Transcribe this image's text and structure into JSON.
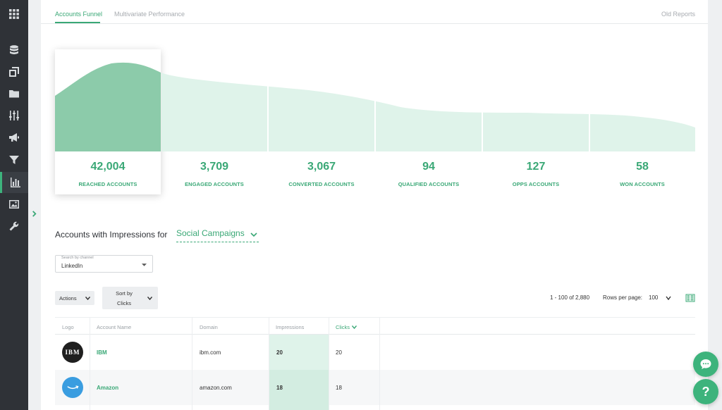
{
  "tabs": [
    {
      "label": "Accounts Funnel",
      "active": true
    },
    {
      "label": "Multivariate Performance",
      "active": false
    }
  ],
  "old_reports": "Old Reports",
  "funnel": {
    "stages": [
      {
        "value": "42,004",
        "label": "REACHED ACCOUNTS",
        "selected": true
      },
      {
        "value": "3,709",
        "label": "ENGAGED ACCOUNTS"
      },
      {
        "value": "3,067",
        "label": "CONVERTED ACCOUNTS"
      },
      {
        "value": "94",
        "label": "QUALIFIED ACCOUNTS"
      },
      {
        "value": "127",
        "label": "OPPS ACCOUNTS"
      },
      {
        "value": "58",
        "label": "WON ACCOUNTS"
      }
    ],
    "colors": {
      "selected": "#8ccbaa",
      "unselected": "#dff3ea"
    }
  },
  "section": {
    "title": "Accounts with Impressions for",
    "campaign": "Social Campaigns"
  },
  "channel": {
    "caption": "Search by channel",
    "value": "LinkedIn"
  },
  "toolbar": {
    "actions": "Actions",
    "sort_line1": "Sort by",
    "sort_line2": "Clicks",
    "range": "1 - 100 of 2,880",
    "rows_per_page_label": "Rows per page:",
    "rows_per_page": "100"
  },
  "table": {
    "columns": [
      "Logo",
      "Account Name",
      "Domain",
      "Impressions",
      "Clicks"
    ],
    "sorted_column": "Clicks",
    "rows": [
      {
        "logo": "IBM",
        "name": "IBM",
        "domain": "ibm.com",
        "impressions": "20",
        "clicks": "20"
      },
      {
        "logo": "amazon",
        "name": "Amazon",
        "domain": "amazon.com",
        "impressions": "18",
        "clicks": "18"
      }
    ]
  },
  "accent": "#3aa876",
  "sidebar_icons": [
    "apps-icon",
    "database-icon",
    "layers-icon",
    "folder-icon",
    "sliders-icon",
    "megaphone-icon",
    "filter-icon",
    "bar-chart-icon",
    "image-icon",
    "wrench-icon"
  ]
}
